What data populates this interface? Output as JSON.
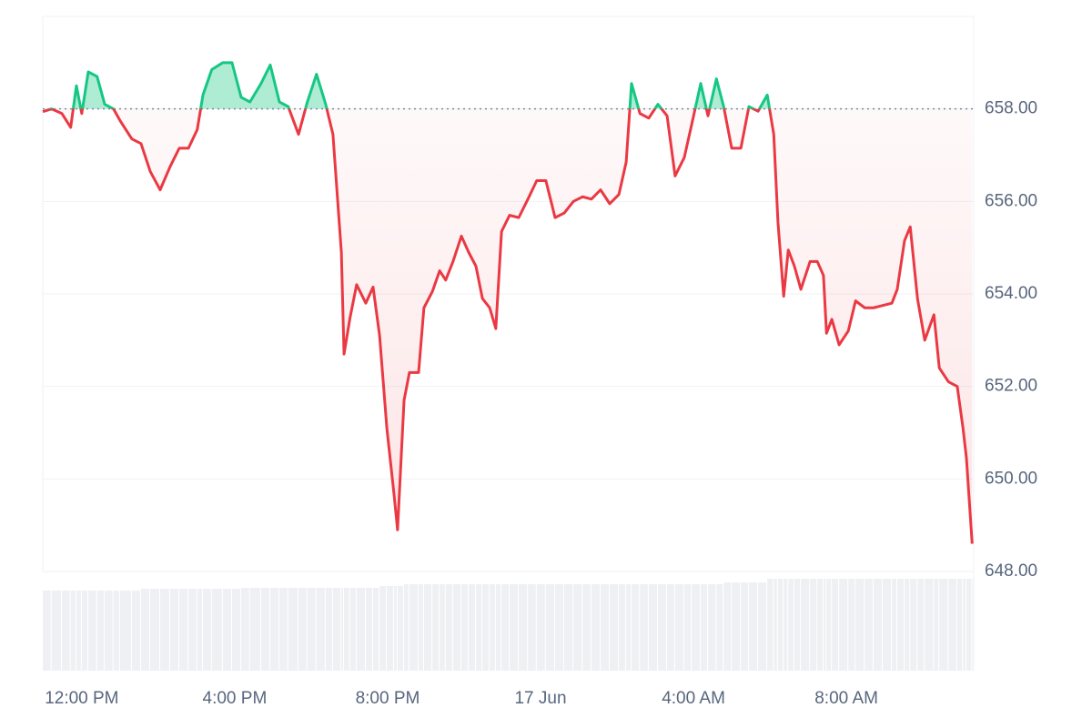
{
  "chart_data": {
    "type": "line",
    "xlim": [
      -1.02,
      23.33
    ],
    "xticks": [
      {
        "value": 0,
        "label": "12:00 PM"
      },
      {
        "value": 4,
        "label": "4:00 PM"
      },
      {
        "value": 8,
        "label": "8:00 PM"
      },
      {
        "value": 12,
        "label": "17 Jun"
      },
      {
        "value": 16,
        "label": "4:00 AM"
      },
      {
        "value": 20,
        "label": "8:00 AM"
      }
    ],
    "ylim": [
      648,
      660
    ],
    "yticks": [
      {
        "value": 648,
        "label": "648.00"
      },
      {
        "value": 650,
        "label": "650.00"
      },
      {
        "value": 652,
        "label": "652.00"
      },
      {
        "value": 654,
        "label": "654.00"
      },
      {
        "value": 656,
        "label": "656.00"
      },
      {
        "value": 658,
        "label": "658.00"
      }
    ],
    "grid": true,
    "baseline": 658,
    "up_color": "#16c784",
    "down_color": "#ea3943",
    "volume_color": "#eef0f3",
    "x": [
      -1.02,
      -0.79,
      -0.52,
      -0.29,
      -0.14,
      0,
      0.17,
      0.4,
      0.6,
      0.83,
      1,
      1.31,
      1.55,
      1.79,
      2.05,
      2.31,
      2.55,
      2.79,
      3.02,
      3.17,
      3.4,
      3.69,
      3.93,
      4.17,
      4.4,
      4.69,
      4.93,
      5.17,
      5.4,
      5.67,
      5.9,
      6.14,
      6.38,
      6.57,
      6.79,
      6.86,
      7.02,
      7.19,
      7.43,
      7.62,
      7.79,
      7.98,
      8.17,
      8.26,
      8.43,
      8.57,
      8.81,
      8.95,
      9.17,
      9.36,
      9.52,
      9.71,
      9.93,
      10.12,
      10.31,
      10.48,
      10.67,
      10.83,
      10.98,
      11.19,
      11.43,
      11.67,
      11.9,
      12.14,
      12.38,
      12.62,
      12.86,
      13.1,
      13.33,
      13.57,
      13.81,
      14.05,
      14.24,
      14.38,
      14.6,
      14.83,
      15.07,
      15.31,
      15.52,
      15.76,
      15.95,
      16.19,
      16.38,
      16.6,
      16.79,
      17,
      17.24,
      17.45,
      17.69,
      17.93,
      18.1,
      18.21,
      18.36,
      18.48,
      18.64,
      18.81,
      19.05,
      19.24,
      19.4,
      19.48,
      19.62,
      19.81,
      20.05,
      20.24,
      20.48,
      20.71,
      20.95,
      21.19,
      21.33,
      21.52,
      21.67,
      21.86,
      22.05,
      22.29,
      22.43,
      22.67,
      22.9,
      23.05,
      23.14,
      23.29
    ],
    "series": [
      {
        "values": [
          657.94,
          658,
          657.9,
          657.6,
          658.5,
          657.9,
          658.8,
          658.7,
          658.1,
          658,
          657.75,
          657.35,
          657.25,
          656.65,
          656.25,
          656.75,
          657.15,
          657.15,
          657.55,
          658.3,
          658.85,
          659,
          659,
          658.25,
          658.15,
          658.55,
          658.95,
          658.15,
          658.05,
          657.45,
          658.15,
          658.75,
          658.1,
          657.45,
          654.9,
          652.7,
          653.5,
          654.2,
          653.8,
          654.15,
          653.1,
          651.1,
          649.65,
          648.9,
          651.7,
          652.3,
          652.3,
          653.7,
          654.05,
          654.5,
          654.3,
          654.7,
          655.25,
          654.9,
          654.6,
          653.9,
          653.7,
          653.25,
          655.35,
          655.7,
          655.65,
          656.05,
          656.45,
          656.45,
          655.65,
          655.75,
          656,
          656.1,
          656.05,
          656.25,
          655.95,
          656.15,
          656.85,
          658.55,
          657.9,
          657.8,
          658.1,
          657.85,
          656.55,
          656.95,
          657.65,
          658.55,
          657.85,
          658.65,
          658.05,
          657.15,
          657.15,
          658.05,
          657.95,
          658.3,
          657.45,
          655.55,
          653.95,
          654.95,
          654.6,
          654.1,
          654.7,
          654.7,
          654.4,
          653.15,
          653.45,
          652.9,
          653.2,
          653.85,
          653.7,
          653.7,
          653.75,
          653.8,
          654.1,
          655.15,
          655.45,
          653.9,
          653,
          653.55,
          652.4,
          652.1,
          652,
          651.1,
          650.45,
          648.6
        ],
        "volume": [
          88,
          88,
          88,
          88,
          88,
          88,
          88,
          88,
          88,
          88,
          88,
          88,
          90,
          90,
          90,
          90,
          90,
          90,
          90,
          90,
          90,
          90,
          90,
          91,
          91,
          91,
          91,
          91,
          91,
          91,
          91,
          91,
          91,
          91,
          91,
          91,
          91,
          91,
          91,
          91,
          93,
          93,
          93,
          93,
          95,
          95,
          95,
          95,
          95,
          95,
          95,
          95,
          95,
          95,
          95,
          95,
          95,
          95,
          95,
          95,
          95,
          95,
          95,
          95,
          95,
          95,
          95,
          95,
          95,
          95,
          95,
          95,
          95,
          95,
          95,
          95,
          95,
          95,
          95,
          95,
          95,
          95,
          95,
          95,
          97,
          97,
          97,
          97,
          97,
          101,
          101,
          101,
          101,
          101,
          101,
          101,
          101,
          101,
          101,
          101,
          101,
          101,
          101,
          101,
          101,
          101,
          101,
          101,
          101,
          101,
          101,
          101,
          101,
          101,
          101,
          101,
          101,
          101,
          101,
          101
        ]
      }
    ]
  }
}
